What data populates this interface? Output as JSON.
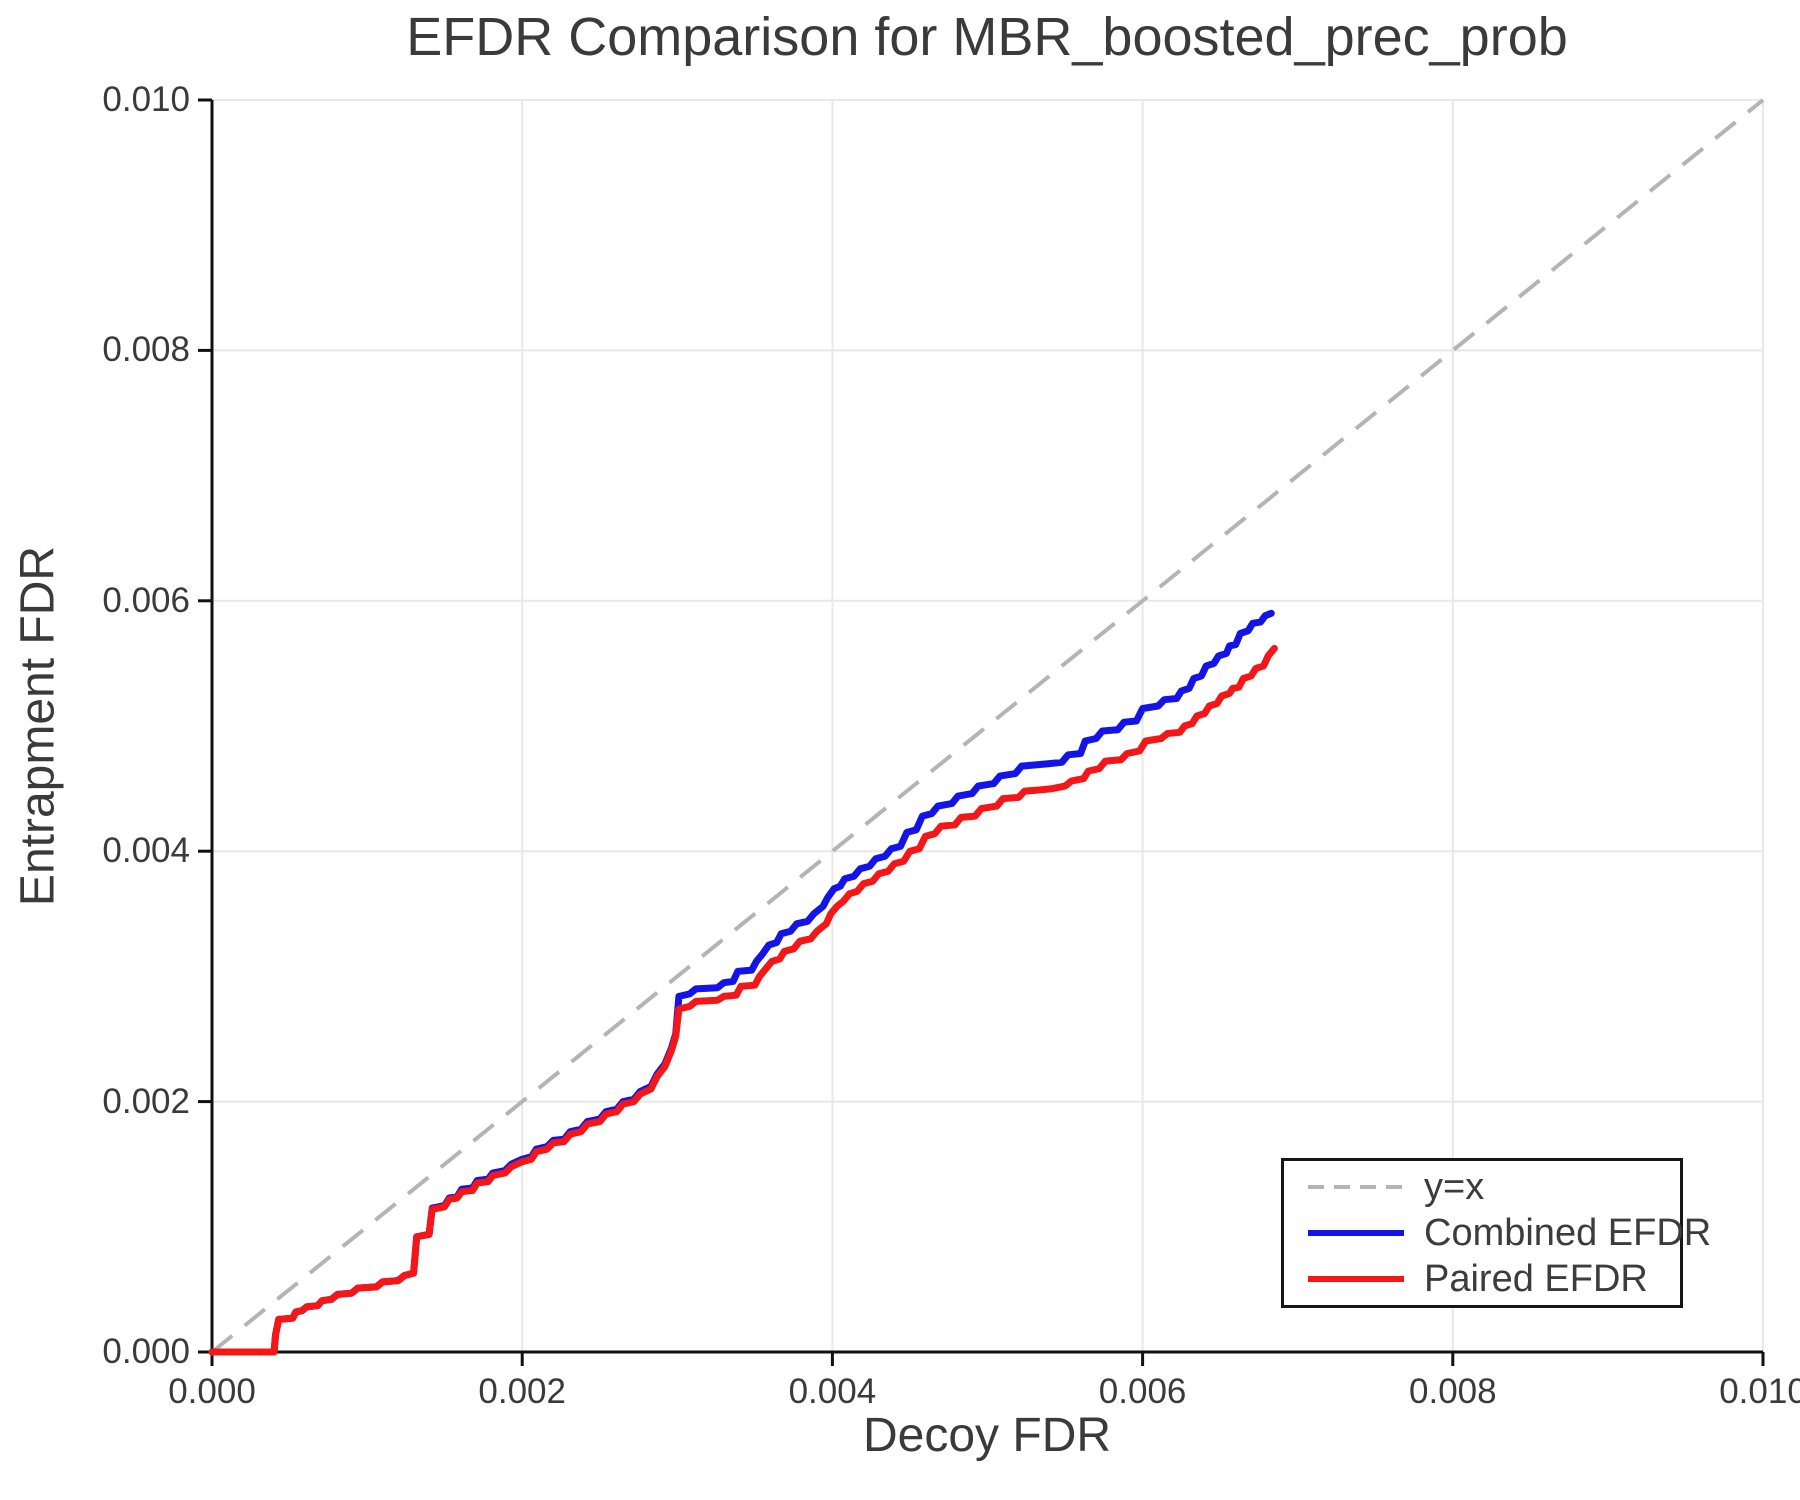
{
  "chart_data": {
    "type": "line",
    "title": "EFDR Comparison for MBR_boosted_prec_prob",
    "xlabel": "Decoy FDR",
    "ylabel": "Entrapment FDR",
    "xlim": [
      0.0,
      0.01
    ],
    "ylim": [
      0.0,
      0.01
    ],
    "x_ticks": [
      0.0,
      0.002,
      0.004,
      0.006,
      0.008,
      0.01
    ],
    "y_ticks": [
      0.0,
      0.002,
      0.004,
      0.006,
      0.008,
      0.01
    ],
    "x_tick_labels": [
      "0.000",
      "0.002",
      "0.004",
      "0.006",
      "0.008",
      "0.010"
    ],
    "y_tick_labels": [
      "0.000",
      "0.002",
      "0.004",
      "0.006",
      "0.008",
      "0.010"
    ],
    "grid": true,
    "grid_color": "#e8e8e8",
    "spine_color": "#111111",
    "text_color": "#3a3a3a",
    "legend": {
      "position": "lower right",
      "items": [
        {
          "label": "y=x",
          "color": "#b4b4b4",
          "dash": true
        },
        {
          "label": "Combined EFDR",
          "color": "#1414e6",
          "dash": false
        },
        {
          "label": "Paired EFDR",
          "color": "#f31717",
          "dash": false
        }
      ]
    },
    "diagonal": {
      "label": "y=x",
      "style": "dashed",
      "color": "#b4b4b4",
      "from": [
        0.0,
        0.0
      ],
      "to": [
        0.01,
        0.01
      ]
    },
    "series": [
      {
        "name": "Combined EFDR",
        "color": "#1414e6",
        "points": [
          [
            0.0,
            0.0
          ],
          [
            0.0004,
            0.0
          ],
          [
            0.00041,
            0.00014
          ],
          [
            0.00043,
            0.00026
          ],
          [
            0.00052,
            0.00027
          ],
          [
            0.00054,
            0.00032
          ],
          [
            0.00058,
            0.00033
          ],
          [
            0.00061,
            0.00036
          ],
          [
            0.00068,
            0.00037
          ],
          [
            0.00071,
            0.00041
          ],
          [
            0.00077,
            0.00042
          ],
          [
            0.00081,
            0.00046
          ],
          [
            0.0009,
            0.00047
          ],
          [
            0.00094,
            0.00051
          ],
          [
            0.00106,
            0.00052
          ],
          [
            0.0011,
            0.00056
          ],
          [
            0.0012,
            0.00057
          ],
          [
            0.00124,
            0.00061
          ],
          [
            0.0013,
            0.00063
          ],
          [
            0.00132,
            0.00092
          ],
          [
            0.0014,
            0.00094
          ],
          [
            0.00142,
            0.00115
          ],
          [
            0.0015,
            0.00117
          ],
          [
            0.00153,
            0.00123
          ],
          [
            0.00158,
            0.00124
          ],
          [
            0.00161,
            0.0013
          ],
          [
            0.00168,
            0.00131
          ],
          [
            0.00171,
            0.00137
          ],
          [
            0.00178,
            0.00138
          ],
          [
            0.00181,
            0.00143
          ],
          [
            0.00189,
            0.00145
          ],
          [
            0.00193,
            0.0015
          ],
          [
            0.002,
            0.00154
          ],
          [
            0.00206,
            0.00156
          ],
          [
            0.00209,
            0.00162
          ],
          [
            0.00216,
            0.00164
          ],
          [
            0.0022,
            0.00169
          ],
          [
            0.00227,
            0.0017
          ],
          [
            0.00231,
            0.00176
          ],
          [
            0.00238,
            0.00178
          ],
          [
            0.00242,
            0.00184
          ],
          [
            0.0025,
            0.00186
          ],
          [
            0.00254,
            0.00192
          ],
          [
            0.00261,
            0.00194
          ],
          [
            0.00265,
            0.002
          ],
          [
            0.00272,
            0.00202
          ],
          [
            0.00276,
            0.00208
          ],
          [
            0.00283,
            0.00212
          ],
          [
            0.00287,
            0.00222
          ],
          [
            0.00292,
            0.0023
          ],
          [
            0.00296,
            0.00242
          ],
          [
            0.00299,
            0.00254
          ],
          [
            0.00301,
            0.00284
          ],
          [
            0.00308,
            0.00286
          ],
          [
            0.00312,
            0.0029
          ],
          [
            0.00326,
            0.00291
          ],
          [
            0.0033,
            0.00295
          ],
          [
            0.00336,
            0.00296
          ],
          [
            0.00339,
            0.00304
          ],
          [
            0.00348,
            0.00305
          ],
          [
            0.00351,
            0.00312
          ],
          [
            0.00355,
            0.00318
          ],
          [
            0.00359,
            0.00325
          ],
          [
            0.00364,
            0.00327
          ],
          [
            0.00367,
            0.00334
          ],
          [
            0.00373,
            0.00336
          ],
          [
            0.00377,
            0.00342
          ],
          [
            0.00384,
            0.00344
          ],
          [
            0.00388,
            0.0035
          ],
          [
            0.00394,
            0.00356
          ],
          [
            0.00397,
            0.00363
          ],
          [
            0.00401,
            0.0037
          ],
          [
            0.00405,
            0.00372
          ],
          [
            0.00408,
            0.00378
          ],
          [
            0.00414,
            0.0038
          ],
          [
            0.00418,
            0.00386
          ],
          [
            0.00424,
            0.00388
          ],
          [
            0.00428,
            0.00394
          ],
          [
            0.00434,
            0.00396
          ],
          [
            0.00438,
            0.00402
          ],
          [
            0.00444,
            0.00404
          ],
          [
            0.00448,
            0.00415
          ],
          [
            0.00454,
            0.00417
          ],
          [
            0.00458,
            0.00428
          ],
          [
            0.00464,
            0.0043
          ],
          [
            0.00468,
            0.00436
          ],
          [
            0.00477,
            0.00438
          ],
          [
            0.00481,
            0.00444
          ],
          [
            0.0049,
            0.00446
          ],
          [
            0.00494,
            0.00452
          ],
          [
            0.00504,
            0.00454
          ],
          [
            0.00508,
            0.0046
          ],
          [
            0.00518,
            0.00462
          ],
          [
            0.00522,
            0.00468
          ],
          [
            0.00532,
            0.00469
          ],
          [
            0.0054,
            0.0047
          ],
          [
            0.00548,
            0.00471
          ],
          [
            0.00552,
            0.00477
          ],
          [
            0.0056,
            0.00478
          ],
          [
            0.00563,
            0.00488
          ],
          [
            0.0057,
            0.0049
          ],
          [
            0.00574,
            0.00496
          ],
          [
            0.00584,
            0.00497
          ],
          [
            0.00588,
            0.00503
          ],
          [
            0.00596,
            0.00504
          ],
          [
            0.006,
            0.00514
          ],
          [
            0.0061,
            0.00516
          ],
          [
            0.00614,
            0.00521
          ],
          [
            0.00622,
            0.00522
          ],
          [
            0.00625,
            0.00528
          ],
          [
            0.0063,
            0.0053
          ],
          [
            0.00633,
            0.00538
          ],
          [
            0.00638,
            0.0054
          ],
          [
            0.00641,
            0.00548
          ],
          [
            0.00646,
            0.0055
          ],
          [
            0.00649,
            0.00556
          ],
          [
            0.00654,
            0.00558
          ],
          [
            0.00656,
            0.00564
          ],
          [
            0.0066,
            0.00565
          ],
          [
            0.00663,
            0.00574
          ],
          [
            0.00668,
            0.00576
          ],
          [
            0.00671,
            0.00582
          ],
          [
            0.00676,
            0.00583
          ],
          [
            0.00679,
            0.00588
          ],
          [
            0.00683,
            0.0059
          ]
        ]
      },
      {
        "name": "Paired EFDR",
        "color": "#f31717",
        "points": [
          [
            0.0,
            0.0
          ],
          [
            0.0004,
            0.0
          ],
          [
            0.00041,
            0.00014
          ],
          [
            0.00043,
            0.00026
          ],
          [
            0.00052,
            0.00027
          ],
          [
            0.00054,
            0.00032
          ],
          [
            0.00058,
            0.00033
          ],
          [
            0.00061,
            0.00036
          ],
          [
            0.00068,
            0.00037
          ],
          [
            0.00071,
            0.00041
          ],
          [
            0.00077,
            0.00042
          ],
          [
            0.00081,
            0.00046
          ],
          [
            0.0009,
            0.00047
          ],
          [
            0.00094,
            0.00051
          ],
          [
            0.00106,
            0.00052
          ],
          [
            0.0011,
            0.00056
          ],
          [
            0.0012,
            0.00057
          ],
          [
            0.00124,
            0.00061
          ],
          [
            0.0013,
            0.00063
          ],
          [
            0.00132,
            0.00092
          ],
          [
            0.0014,
            0.00094
          ],
          [
            0.00142,
            0.00114
          ],
          [
            0.0015,
            0.00116
          ],
          [
            0.00153,
            0.00122
          ],
          [
            0.00158,
            0.00123
          ],
          [
            0.00161,
            0.00128
          ],
          [
            0.00168,
            0.00129
          ],
          [
            0.00171,
            0.00135
          ],
          [
            0.00178,
            0.00136
          ],
          [
            0.00181,
            0.00141
          ],
          [
            0.00189,
            0.00143
          ],
          [
            0.00193,
            0.00148
          ],
          [
            0.002,
            0.00152
          ],
          [
            0.00206,
            0.00154
          ],
          [
            0.00209,
            0.0016
          ],
          [
            0.00216,
            0.00162
          ],
          [
            0.0022,
            0.00167
          ],
          [
            0.00227,
            0.00168
          ],
          [
            0.00231,
            0.00174
          ],
          [
            0.00238,
            0.00176
          ],
          [
            0.00242,
            0.00182
          ],
          [
            0.0025,
            0.00184
          ],
          [
            0.00254,
            0.0019
          ],
          [
            0.00261,
            0.00192
          ],
          [
            0.00265,
            0.00198
          ],
          [
            0.00272,
            0.002
          ],
          [
            0.00276,
            0.00206
          ],
          [
            0.00283,
            0.0021
          ],
          [
            0.00287,
            0.0022
          ],
          [
            0.00292,
            0.00228
          ],
          [
            0.00296,
            0.0024
          ],
          [
            0.00299,
            0.00252
          ],
          [
            0.00301,
            0.00274
          ],
          [
            0.00308,
            0.00276
          ],
          [
            0.00312,
            0.0028
          ],
          [
            0.00326,
            0.00281
          ],
          [
            0.0033,
            0.00284
          ],
          [
            0.00338,
            0.00285
          ],
          [
            0.00341,
            0.00292
          ],
          [
            0.0035,
            0.00293
          ],
          [
            0.00353,
            0.003
          ],
          [
            0.00357,
            0.00306
          ],
          [
            0.00361,
            0.00312
          ],
          [
            0.00366,
            0.00314
          ],
          [
            0.00369,
            0.0032
          ],
          [
            0.00375,
            0.00322
          ],
          [
            0.00379,
            0.00328
          ],
          [
            0.00386,
            0.0033
          ],
          [
            0.0039,
            0.00336
          ],
          [
            0.00396,
            0.00342
          ],
          [
            0.00399,
            0.0035
          ],
          [
            0.00403,
            0.00356
          ],
          [
            0.00407,
            0.0036
          ],
          [
            0.00411,
            0.00366
          ],
          [
            0.00416,
            0.00368
          ],
          [
            0.0042,
            0.00374
          ],
          [
            0.00426,
            0.00376
          ],
          [
            0.0043,
            0.00382
          ],
          [
            0.00436,
            0.00384
          ],
          [
            0.0044,
            0.0039
          ],
          [
            0.00446,
            0.00392
          ],
          [
            0.0045,
            0.004
          ],
          [
            0.00456,
            0.00402
          ],
          [
            0.0046,
            0.00412
          ],
          [
            0.00466,
            0.00414
          ],
          [
            0.0047,
            0.0042
          ],
          [
            0.00479,
            0.00421
          ],
          [
            0.00483,
            0.00427
          ],
          [
            0.00492,
            0.00428
          ],
          [
            0.00496,
            0.00434
          ],
          [
            0.00506,
            0.00436
          ],
          [
            0.0051,
            0.00442
          ],
          [
            0.0052,
            0.00443
          ],
          [
            0.00524,
            0.00448
          ],
          [
            0.00534,
            0.00449
          ],
          [
            0.00542,
            0.0045
          ],
          [
            0.0055,
            0.00452
          ],
          [
            0.00554,
            0.00456
          ],
          [
            0.00562,
            0.00458
          ],
          [
            0.00565,
            0.00464
          ],
          [
            0.00572,
            0.00466
          ],
          [
            0.00576,
            0.00472
          ],
          [
            0.00586,
            0.00473
          ],
          [
            0.0059,
            0.00478
          ],
          [
            0.00598,
            0.0048
          ],
          [
            0.00602,
            0.00488
          ],
          [
            0.00612,
            0.0049
          ],
          [
            0.00616,
            0.00494
          ],
          [
            0.00624,
            0.00495
          ],
          [
            0.00627,
            0.005
          ],
          [
            0.00632,
            0.00502
          ],
          [
            0.00635,
            0.00508
          ],
          [
            0.0064,
            0.0051
          ],
          [
            0.00643,
            0.00516
          ],
          [
            0.00648,
            0.00518
          ],
          [
            0.00651,
            0.00524
          ],
          [
            0.00656,
            0.00526
          ],
          [
            0.00658,
            0.0053
          ],
          [
            0.00662,
            0.00531
          ],
          [
            0.00665,
            0.00538
          ],
          [
            0.0067,
            0.0054
          ],
          [
            0.00673,
            0.00546
          ],
          [
            0.00678,
            0.00548
          ],
          [
            0.00681,
            0.00556
          ],
          [
            0.00685,
            0.00562
          ]
        ]
      }
    ]
  }
}
